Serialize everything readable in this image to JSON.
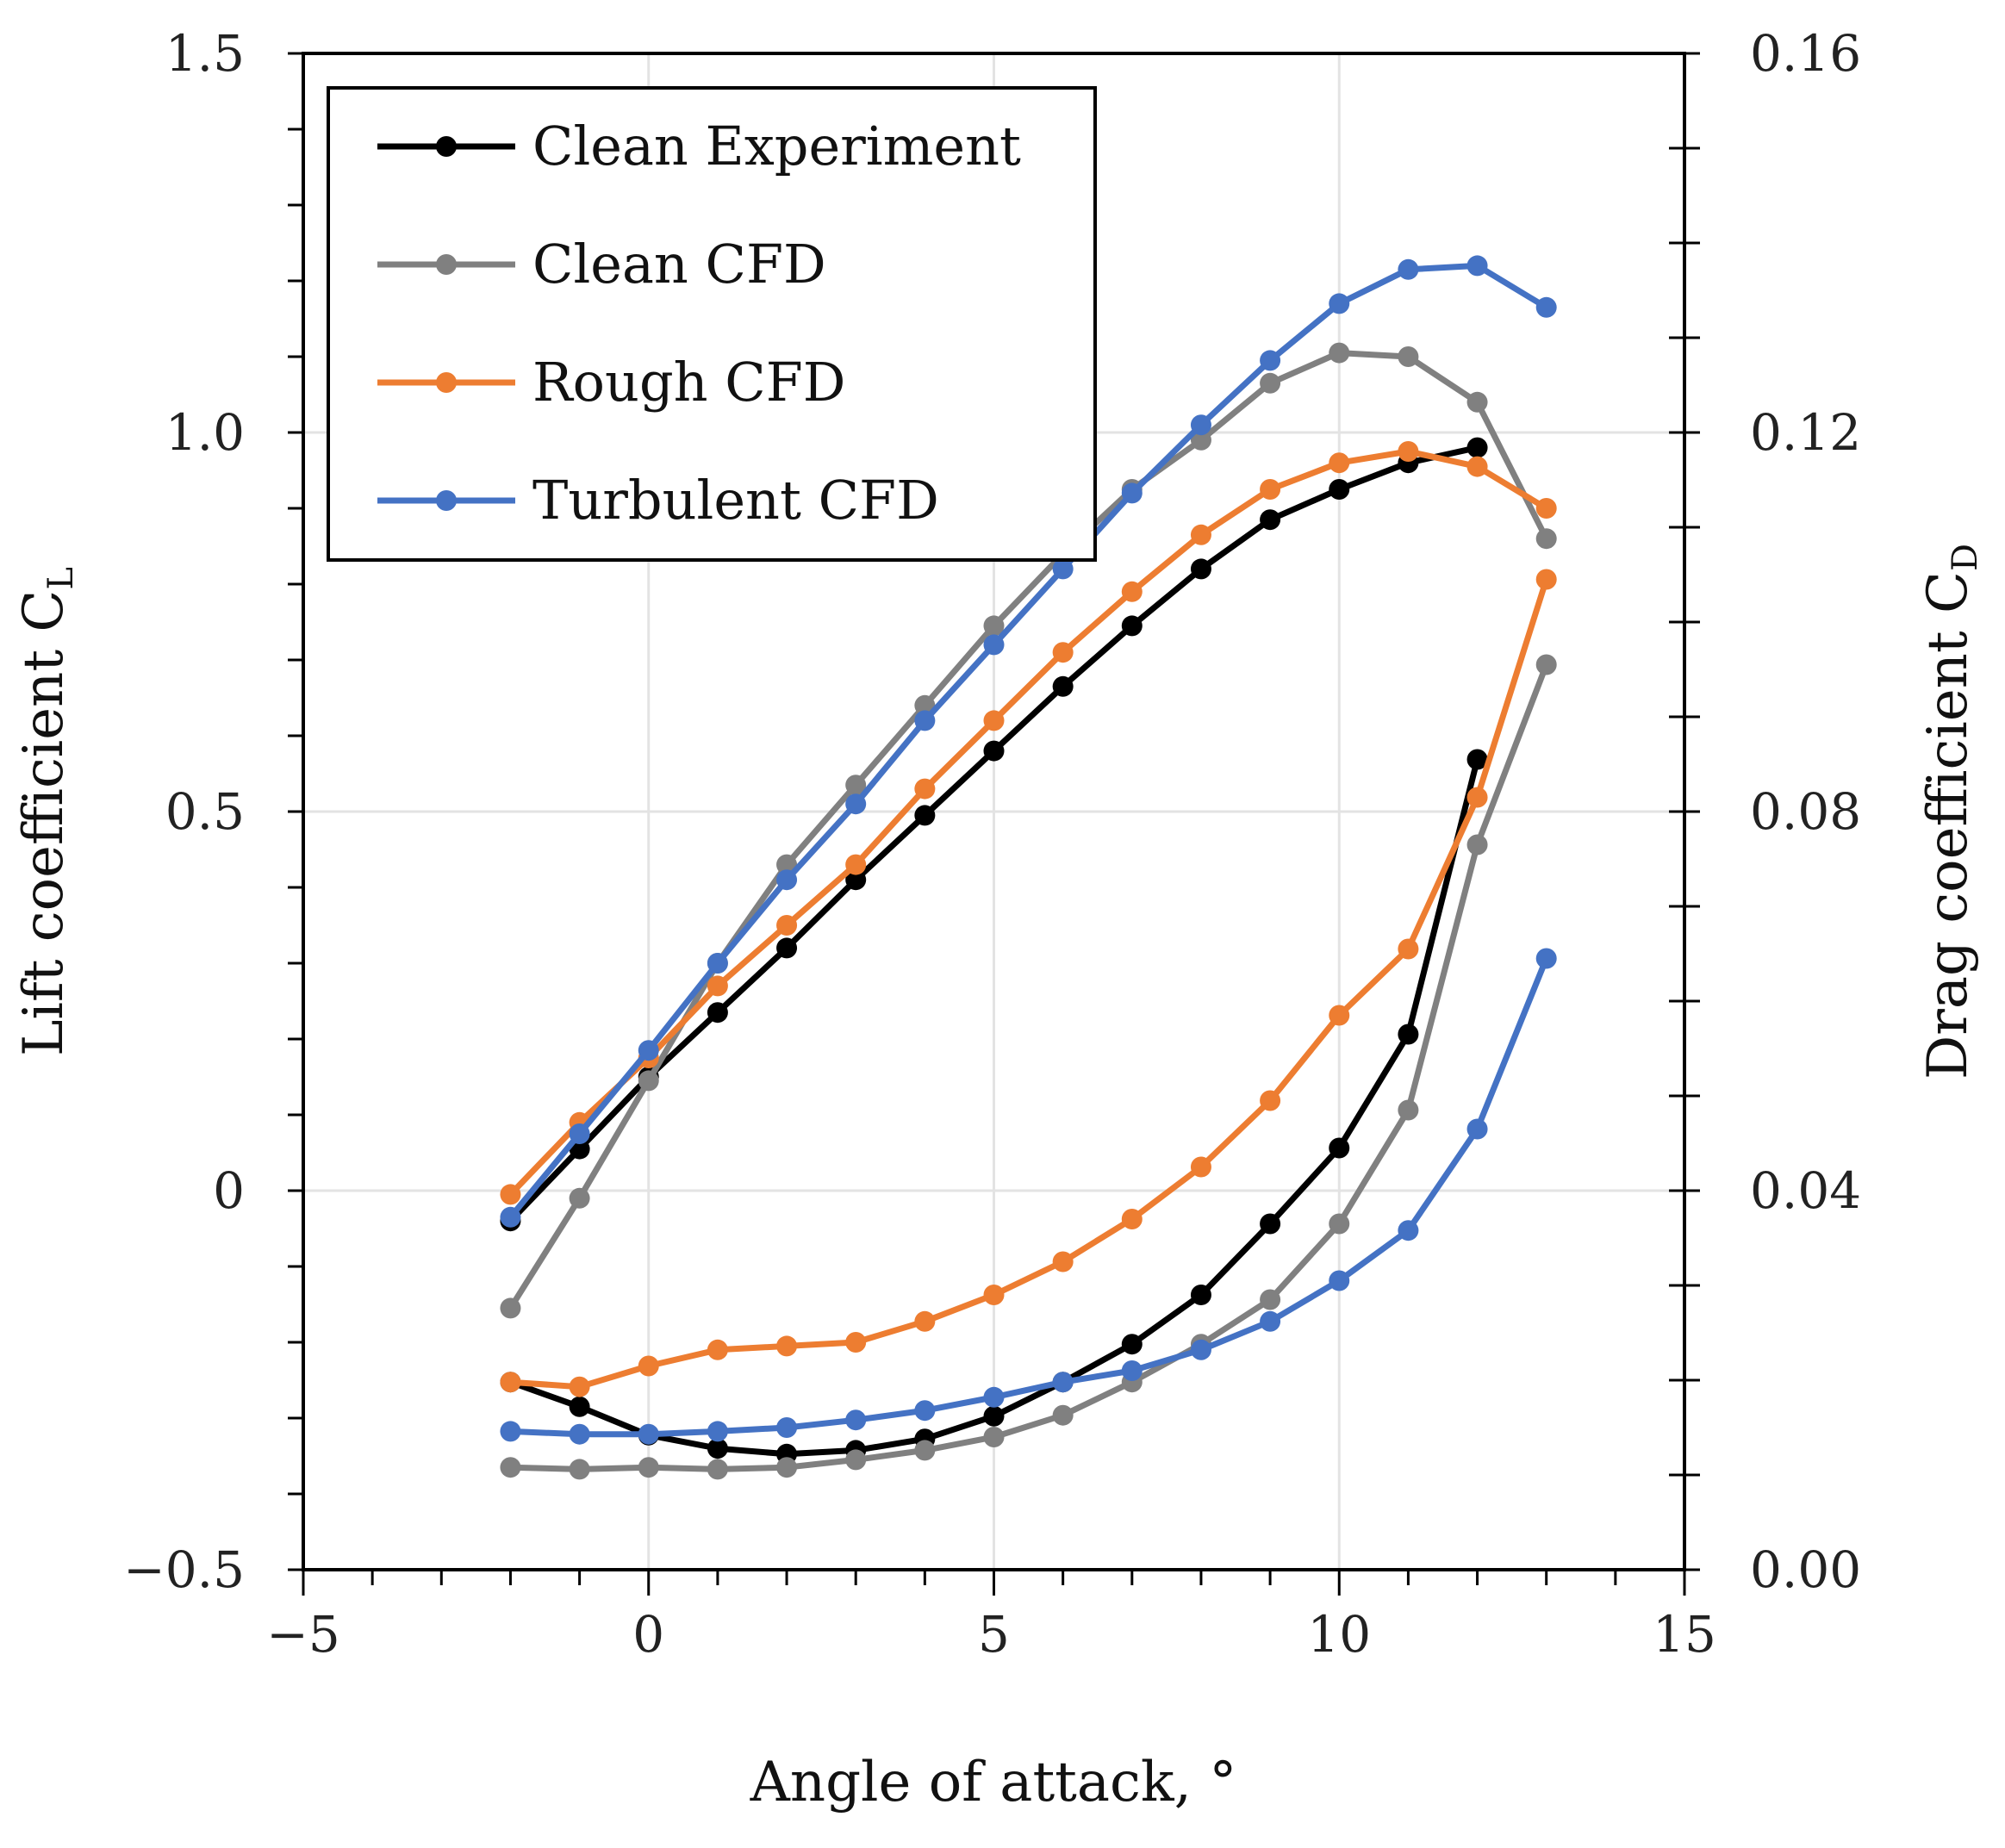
{
  "chart_data": {
    "type": "line",
    "xlabel": "Angle of attack, °",
    "ylabel": "Lift coefficient C",
    "ylabel_sub": "L",
    "y2label": "Drag coefficient C",
    "y2label_sub": "D",
    "xlim": [
      -5,
      15
    ],
    "ylim": [
      -0.5,
      1.5
    ],
    "y2lim": [
      0.0,
      0.16
    ],
    "x_ticks": [
      -5,
      0,
      5,
      10,
      15
    ],
    "x_tick_labels": [
      "−5",
      "0",
      "5",
      "10",
      "15"
    ],
    "y_ticks": [
      -0.5,
      0,
      0.5,
      1.0,
      1.5
    ],
    "y_tick_labels": [
      "−0.5",
      "0",
      "0.5",
      "1.0",
      "1.5"
    ],
    "y2_ticks": [
      0.0,
      0.04,
      0.08,
      0.12,
      0.16
    ],
    "y2_tick_labels": [
      "0.00",
      "0.04",
      "0.08",
      "0.12",
      "0.16"
    ],
    "grid": true,
    "legend_position": "top-left",
    "series": [
      {
        "name": "Clean Experiment",
        "color": "#000000",
        "x": [
          -2,
          -1,
          0,
          1,
          2,
          3,
          4,
          5,
          6,
          7,
          8,
          9,
          10,
          11,
          12
        ],
        "cl": [
          -0.04,
          0.055,
          0.15,
          0.235,
          0.32,
          0.41,
          0.495,
          0.58,
          0.665,
          0.745,
          0.82,
          0.885,
          0.925,
          0.96,
          0.98
        ],
        "cd": [
          0.0198,
          0.0172,
          0.0142,
          0.0128,
          0.0122,
          0.0126,
          0.0138,
          0.0162,
          0.0198,
          0.0238,
          0.029,
          0.0365,
          0.0445,
          0.0565,
          0.0855
        ]
      },
      {
        "name": "Clean CFD",
        "color": "#808080",
        "x": [
          -2,
          -1,
          0,
          1,
          2,
          3,
          4,
          5,
          6,
          7,
          8,
          9,
          10,
          11,
          12,
          13
        ],
        "cl": [
          -0.155,
          -0.01,
          0.145,
          0.3,
          0.43,
          0.535,
          0.64,
          0.745,
          0.84,
          0.925,
          0.99,
          1.065,
          1.105,
          1.1,
          1.04,
          0.86
        ],
        "cd": [
          0.0108,
          0.0106,
          0.0108,
          0.0106,
          0.0108,
          0.0116,
          0.0126,
          0.014,
          0.0163,
          0.0198,
          0.0238,
          0.0285,
          0.0365,
          0.0485,
          0.0765,
          0.0955
        ]
      },
      {
        "name": "Rough CFD",
        "color": "#ED7D31",
        "x": [
          -2,
          -1,
          0,
          1,
          2,
          3,
          4,
          5,
          6,
          7,
          8,
          9,
          10,
          11,
          12,
          13
        ],
        "cl": [
          -0.005,
          0.09,
          0.175,
          0.27,
          0.35,
          0.43,
          0.53,
          0.62,
          0.71,
          0.79,
          0.865,
          0.925,
          0.96,
          0.975,
          0.955,
          0.9
        ],
        "cd": [
          0.0198,
          0.0193,
          0.0215,
          0.0232,
          0.0236,
          0.024,
          0.0262,
          0.029,
          0.0325,
          0.037,
          0.0425,
          0.0495,
          0.0585,
          0.0655,
          0.0815,
          0.1045
        ]
      },
      {
        "name": "Turbulent CFD",
        "color": "#4472C4",
        "x": [
          -2,
          -1,
          0,
          1,
          2,
          3,
          4,
          5,
          6,
          7,
          8,
          9,
          10,
          11,
          12,
          13
        ],
        "cl": [
          -0.035,
          0.075,
          0.185,
          0.3,
          0.41,
          0.51,
          0.62,
          0.72,
          0.82,
          0.92,
          1.01,
          1.095,
          1.17,
          1.215,
          1.22,
          1.165
        ],
        "cd": [
          0.0146,
          0.0143,
          0.0143,
          0.0146,
          0.015,
          0.0158,
          0.0168,
          0.0182,
          0.0198,
          0.021,
          0.0232,
          0.0262,
          0.0305,
          0.0358,
          0.0465,
          0.0645
        ]
      }
    ]
  }
}
